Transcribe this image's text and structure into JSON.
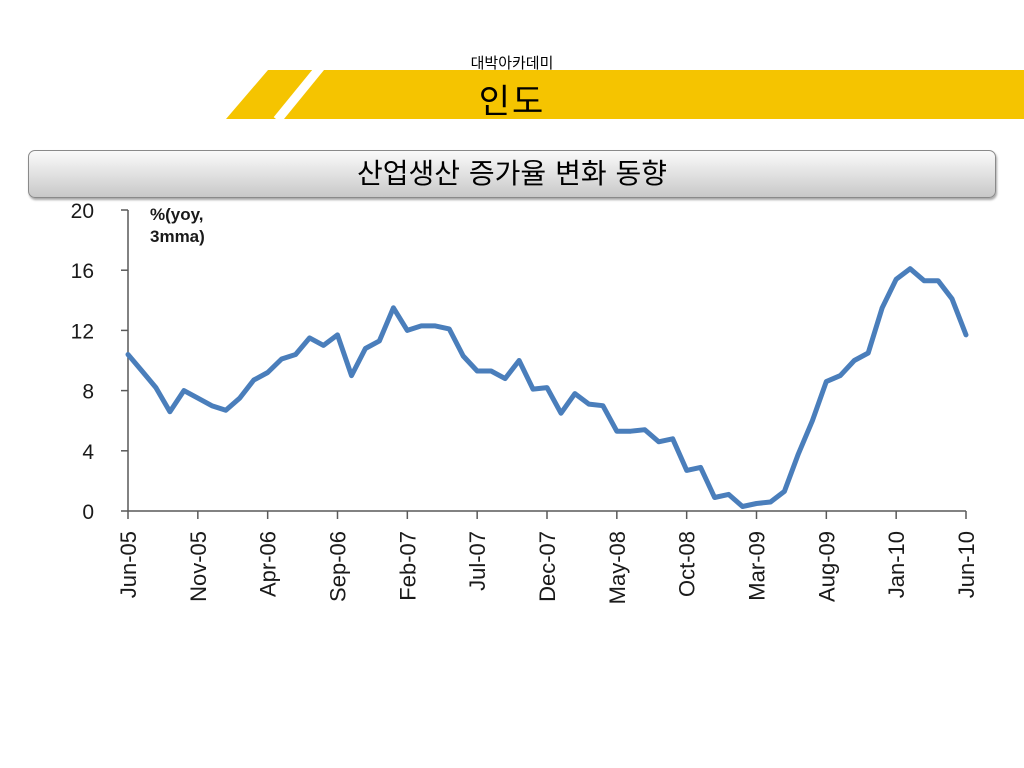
{
  "header": {
    "subtitle": "대박아카데미",
    "title": "인도"
  },
  "chart_header": {
    "title": "산업생산 증가율 변화 동향"
  },
  "colors": {
    "banner_yellow": "#f5c400",
    "line": "#4a7ebb",
    "axis": "#595959"
  },
  "chart_data": {
    "type": "line",
    "unit_label": [
      "%(yoy,",
      "3mma)"
    ],
    "ylim": [
      0,
      20
    ],
    "yticks": [
      0,
      4,
      8,
      12,
      16,
      20
    ],
    "x_start": "Jun-05",
    "x_end": "Jun-10",
    "xtick_labels": [
      "Jun-05",
      "Nov-05",
      "Apr-06",
      "Sep-06",
      "Feb-07",
      "Jul-07",
      "Dec-07",
      "May-08",
      "Oct-08",
      "Mar-09",
      "Aug-09",
      "Jan-10",
      "Jun-10"
    ],
    "series": [
      {
        "values": [
          10.4,
          9.3,
          8.2,
          6.6,
          8.0,
          7.5,
          7.0,
          6.7,
          7.5,
          8.7,
          9.2,
          10.1,
          10.4,
          11.5,
          11.0,
          11.7,
          9.0,
          10.8,
          11.3,
          13.5,
          12.0,
          12.3,
          12.3,
          12.1,
          10.3,
          9.3,
          9.3,
          8.8,
          10.0,
          8.1,
          8.2,
          6.5,
          7.8,
          7.1,
          7.0,
          5.3,
          5.3,
          5.4,
          4.6,
          4.8,
          2.7,
          2.9,
          0.9,
          1.1,
          0.3,
          0.5,
          0.6,
          1.3,
          3.8,
          6.0,
          8.6,
          9.0,
          10.0,
          10.5,
          13.5,
          15.4,
          16.1,
          15.3,
          15.3,
          14.1,
          11.7
        ]
      }
    ]
  }
}
